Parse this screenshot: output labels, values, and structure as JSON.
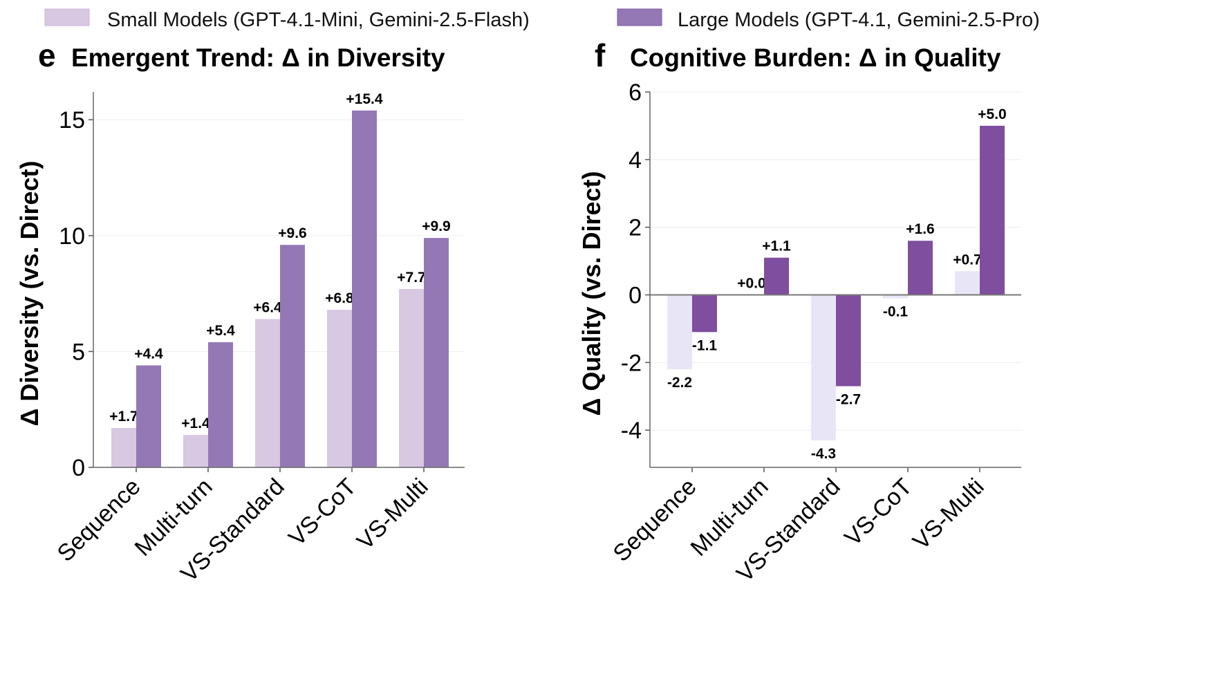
{
  "legend": {
    "placement": "top",
    "items": [
      {
        "label": "Small Models (GPT-4.1-Mini, Gemini-2.5-Flash)",
        "color": "#d8c8e2"
      },
      {
        "label": "Large Models (GPT-4.1, Gemini-2.5-Pro)",
        "color": "#9478b6"
      }
    ]
  },
  "chart_data": [
    {
      "type": "bar",
      "panel_letter": "e",
      "title": "Emergent Trend: Δ in Diversity",
      "xlabel": "",
      "ylabel": "Δ Diversity (vs. Direct)",
      "categories": [
        "Sequence",
        "Multi-turn",
        "VS-Standard",
        "VS-CoT",
        "VS-Multi"
      ],
      "ylim": [
        0,
        16.2
      ],
      "yticks": [
        0,
        5,
        10,
        15
      ],
      "grid": true,
      "series": [
        {
          "name": "Small Models (GPT-4.1-Mini, Gemini-2.5-Flash)",
          "color": "#d8c8e2",
          "values": [
            1.7,
            1.4,
            6.4,
            6.8,
            7.7
          ],
          "labels": [
            "+1.7",
            "+1.4",
            "+6.4",
            "+6.8",
            "+7.7"
          ]
        },
        {
          "name": "Large Models (GPT-4.1, Gemini-2.5-Pro)",
          "color": "#9478b6",
          "values": [
            4.4,
            5.4,
            9.6,
            15.4,
            9.9
          ],
          "labels": [
            "+4.4",
            "+5.4",
            "+9.6",
            "+15.4",
            "+9.9"
          ]
        }
      ]
    },
    {
      "type": "bar",
      "panel_letter": "f",
      "title": "Cognitive Burden: Δ in Quality",
      "xlabel": "",
      "ylabel": "Δ Quality (vs. Direct)",
      "categories": [
        "Sequence",
        "Multi-turn",
        "VS-Standard",
        "VS-CoT",
        "VS-Multi"
      ],
      "ylim": [
        -5.1,
        6.0
      ],
      "yticks": [
        -4,
        -2,
        0,
        2,
        4,
        6
      ],
      "grid": true,
      "series": [
        {
          "name": "Small Models (GPT-4.1-Mini, Gemini-2.5-Flash)",
          "color": "#e8e6f6",
          "values": [
            -2.2,
            0.0,
            -4.3,
            -0.1,
            0.7
          ],
          "labels": [
            "-2.2",
            "+0.0",
            "-4.3",
            "-0.1",
            "+0.7"
          ]
        },
        {
          "name": "Large Models (GPT-4.1, Gemini-2.5-Pro)",
          "color": "#7f4e9f",
          "values": [
            -1.1,
            1.1,
            -2.7,
            1.6,
            5.0
          ],
          "labels": [
            "-1.1",
            "+1.1",
            "-2.7",
            "+1.6",
            "+5.0"
          ]
        }
      ]
    }
  ]
}
